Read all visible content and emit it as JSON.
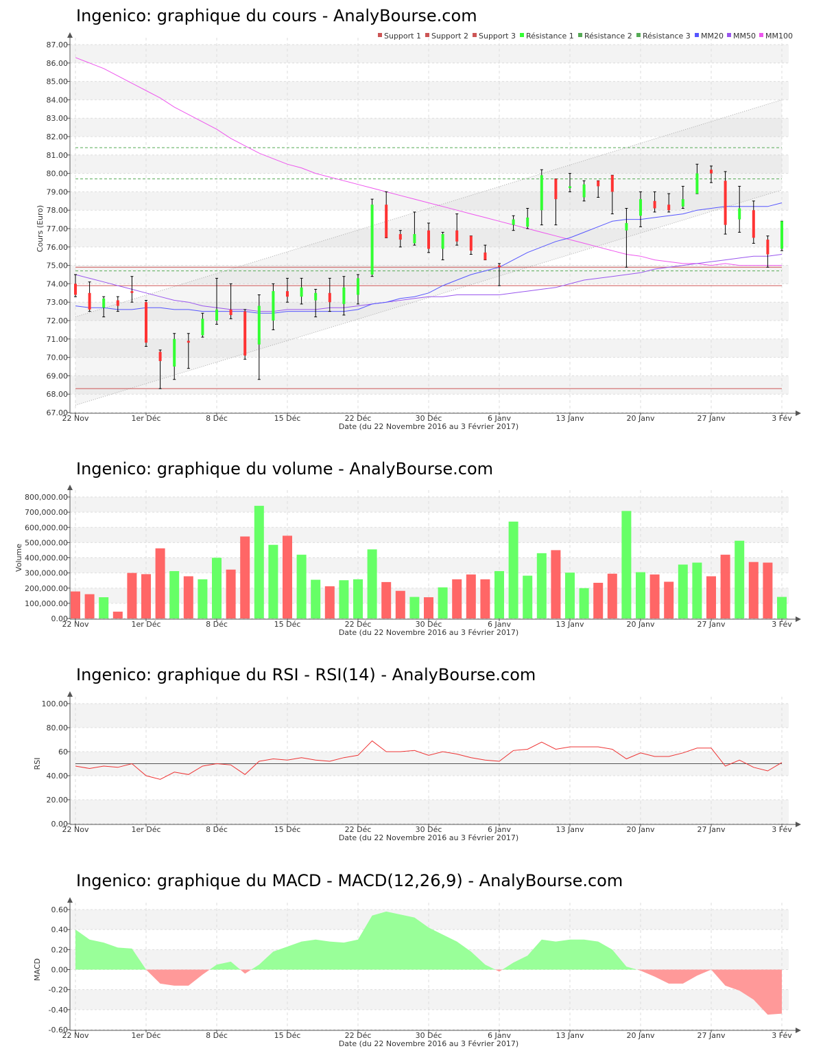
{
  "date_ticks": [
    "22 Nov",
    "1er Déc",
    "8 Déc",
    "15 Déc",
    "22 Déc",
    "30 Déc",
    "6 Janv",
    "13 Janv",
    "20 Janv",
    "27 Janv",
    "3 Fév"
  ],
  "xlabel": "Date (du 22 Novembre 2016 au 3 Février 2017)",
  "colors": {
    "up": "#33ff33",
    "down": "#ff3333",
    "vol_up": "#66ff66",
    "vol_down": "#ff6666",
    "mm20": "#5555ff",
    "mm50": "#9955ee",
    "mm100": "#ee55ee",
    "support": "#cc5555",
    "resistance": "#55aa55",
    "rsi": "#ee3333",
    "macd_pos": "#99ff99",
    "macd_neg": "#ff9999"
  },
  "chart_data": [
    {
      "type": "candlestick",
      "title": "Ingenico: graphique du cours - AnalyBourse.com",
      "ylabel": "Cours (Euro)",
      "xlabel": "Date (du 22 Novembre 2016 au 3 Février 2017)",
      "ylim": [
        67,
        87
      ],
      "yticks": [
        "87.00",
        "86.00",
        "85.00",
        "84.00",
        "83.00",
        "82.00",
        "81.00",
        "80.00",
        "79.00",
        "78.00",
        "77.00",
        "76.00",
        "75.00",
        "74.00",
        "73.00",
        "72.00",
        "71.00",
        "70.00",
        "69.00",
        "68.00",
        "67.00"
      ],
      "legend": [
        "Support 1",
        "Support 2",
        "Support 3",
        "Résistance 1",
        "Résistance 2",
        "Résistance 3",
        "MM20",
        "MM50",
        "MM100"
      ],
      "candles": [
        {
          "o": 74.0,
          "h": 74.5,
          "l": 73.3,
          "c": 73.4
        },
        {
          "o": 73.5,
          "h": 74.1,
          "l": 72.5,
          "c": 72.6
        },
        {
          "o": 72.7,
          "h": 73.3,
          "l": 72.2,
          "c": 73.2
        },
        {
          "o": 73.1,
          "h": 73.3,
          "l": 72.5,
          "c": 72.8
        },
        {
          "o": 73.6,
          "h": 74.4,
          "l": 73.0,
          "c": 73.5
        },
        {
          "o": 73.0,
          "h": 73.1,
          "l": 70.6,
          "c": 70.8
        },
        {
          "o": 70.3,
          "h": 70.4,
          "l": 68.3,
          "c": 69.8
        },
        {
          "o": 69.5,
          "h": 71.3,
          "l": 68.8,
          "c": 71.0
        },
        {
          "o": 70.9,
          "h": 71.3,
          "l": 69.4,
          "c": 70.8
        },
        {
          "o": 71.2,
          "h": 72.4,
          "l": 71.1,
          "c": 72.1
        },
        {
          "o": 72.0,
          "h": 74.3,
          "l": 71.8,
          "c": 72.6
        },
        {
          "o": 72.6,
          "h": 74.0,
          "l": 72.1,
          "c": 72.3
        },
        {
          "o": 72.5,
          "h": 72.6,
          "l": 69.9,
          "c": 70.1
        },
        {
          "o": 70.7,
          "h": 73.4,
          "l": 68.8,
          "c": 72.8
        },
        {
          "o": 72.0,
          "h": 74.0,
          "l": 71.5,
          "c": 73.6
        },
        {
          "o": 73.6,
          "h": 74.3,
          "l": 73.0,
          "c": 73.3
        },
        {
          "o": 73.3,
          "h": 74.3,
          "l": 72.9,
          "c": 73.8
        },
        {
          "o": 73.1,
          "h": 73.7,
          "l": 72.2,
          "c": 73.5
        },
        {
          "o": 73.5,
          "h": 74.3,
          "l": 72.5,
          "c": 73.0
        },
        {
          "o": 72.9,
          "h": 74.4,
          "l": 72.3,
          "c": 73.8
        },
        {
          "o": 73.4,
          "h": 74.5,
          "l": 72.9,
          "c": 74.3
        },
        {
          "o": 74.5,
          "h": 78.6,
          "l": 74.4,
          "c": 78.3
        },
        {
          "o": 78.3,
          "h": 79.0,
          "l": 76.5,
          "c": 76.5
        },
        {
          "o": 76.7,
          "h": 76.9,
          "l": 76.0,
          "c": 76.4
        },
        {
          "o": 76.2,
          "h": 77.9,
          "l": 76.1,
          "c": 76.7
        },
        {
          "o": 76.9,
          "h": 77.3,
          "l": 75.7,
          "c": 75.9
        },
        {
          "o": 75.9,
          "h": 76.8,
          "l": 75.3,
          "c": 76.7
        },
        {
          "o": 76.9,
          "h": 77.8,
          "l": 76.1,
          "c": 76.3
        },
        {
          "o": 76.6,
          "h": 76.6,
          "l": 75.6,
          "c": 75.8
        },
        {
          "o": 75.7,
          "h": 76.1,
          "l": 75.3,
          "c": 75.3
        },
        {
          "o": 75.0,
          "h": 75.1,
          "l": 73.9,
          "c": 74.9
        },
        {
          "o": 77.2,
          "h": 77.7,
          "l": 76.9,
          "c": 77.5
        },
        {
          "o": 77.1,
          "h": 78.1,
          "l": 77.0,
          "c": 77.6
        },
        {
          "o": 78.0,
          "h": 80.2,
          "l": 77.2,
          "c": 79.9
        },
        {
          "o": 79.7,
          "h": 79.7,
          "l": 77.2,
          "c": 78.6
        },
        {
          "o": 79.2,
          "h": 80.0,
          "l": 79.0,
          "c": 79.3
        },
        {
          "o": 78.7,
          "h": 79.6,
          "l": 78.5,
          "c": 79.4
        },
        {
          "o": 79.6,
          "h": 79.6,
          "l": 78.7,
          "c": 79.3
        },
        {
          "o": 79.9,
          "h": 79.9,
          "l": 77.8,
          "c": 79.0
        },
        {
          "o": 76.9,
          "h": 78.1,
          "l": 74.9,
          "c": 77.3
        },
        {
          "o": 77.7,
          "h": 79.0,
          "l": 77.1,
          "c": 78.6
        },
        {
          "o": 78.5,
          "h": 79.0,
          "l": 77.9,
          "c": 78.1
        },
        {
          "o": 78.3,
          "h": 78.9,
          "l": 77.9,
          "c": 78.0
        },
        {
          "o": 78.2,
          "h": 79.3,
          "l": 78.1,
          "c": 78.6
        },
        {
          "o": 78.9,
          "h": 80.5,
          "l": 78.9,
          "c": 80.0
        },
        {
          "o": 80.2,
          "h": 80.4,
          "l": 79.5,
          "c": 80.0
        },
        {
          "o": 79.6,
          "h": 80.1,
          "l": 76.7,
          "c": 77.2
        },
        {
          "o": 77.5,
          "h": 79.3,
          "l": 76.8,
          "c": 78.1
        },
        {
          "o": 78.0,
          "h": 78.5,
          "l": 76.2,
          "c": 76.5
        },
        {
          "o": 76.4,
          "h": 76.6,
          "l": 74.9,
          "c": 75.6
        },
        {
          "o": 75.9,
          "h": 77.4,
          "l": 75.8,
          "c": 77.4
        }
      ],
      "mm20": [
        72.8,
        72.7,
        72.7,
        72.6,
        72.6,
        72.7,
        72.7,
        72.6,
        72.6,
        72.5,
        72.5,
        72.5,
        72.5,
        72.4,
        72.4,
        72.5,
        72.5,
        72.5,
        72.5,
        72.5,
        72.6,
        72.9,
        73.0,
        73.2,
        73.3,
        73.5,
        73.9,
        74.2,
        74.5,
        74.7,
        74.9,
        75.3,
        75.7,
        76.0,
        76.3,
        76.5,
        76.8,
        77.1,
        77.4,
        77.5,
        77.5,
        77.6,
        77.7,
        77.8,
        78.0,
        78.1,
        78.2,
        78.2,
        78.2,
        78.2,
        78.4
      ],
      "mm50": [
        74.5,
        74.3,
        74.1,
        73.9,
        73.7,
        73.5,
        73.3,
        73.1,
        73.0,
        72.8,
        72.7,
        72.6,
        72.6,
        72.5,
        72.5,
        72.6,
        72.6,
        72.6,
        72.7,
        72.7,
        72.8,
        72.9,
        73.0,
        73.1,
        73.2,
        73.3,
        73.3,
        73.4,
        73.4,
        73.4,
        73.4,
        73.5,
        73.6,
        73.7,
        73.8,
        74.0,
        74.2,
        74.3,
        74.4,
        74.5,
        74.6,
        74.8,
        74.9,
        75.0,
        75.1,
        75.2,
        75.3,
        75.4,
        75.5,
        75.5,
        75.6
      ],
      "mm100": [
        86.3,
        86.0,
        85.7,
        85.3,
        84.9,
        84.5,
        84.1,
        83.6,
        83.2,
        82.8,
        82.4,
        81.9,
        81.5,
        81.1,
        80.8,
        80.5,
        80.3,
        80.0,
        79.8,
        79.6,
        79.4,
        79.2,
        79.0,
        78.8,
        78.6,
        78.4,
        78.2,
        78.0,
        77.8,
        77.6,
        77.4,
        77.2,
        77.0,
        76.8,
        76.6,
        76.4,
        76.2,
        76.0,
        75.8,
        75.6,
        75.5,
        75.3,
        75.2,
        75.1,
        75.1,
        75.0,
        75.1,
        75.0,
        75.0,
        75.0,
        75.0
      ],
      "supports": [
        74.9,
        73.9,
        68.3
      ],
      "resistances": [
        81.4,
        79.7,
        74.7
      ],
      "trend_channel": {
        "lower": [
          67.4,
          79.1
        ],
        "upper": [
          72.2,
          84.0
        ]
      }
    },
    {
      "type": "bar",
      "title": "Ingenico: graphique du volume - AnalyBourse.com",
      "ylabel": "Volume",
      "xlabel": "Date (du 22 Novembre 2016 au 3 Février 2017)",
      "ylim": [
        0,
        800000
      ],
      "yticks": [
        "800,000.00",
        "700,000.00",
        "600,000.00",
        "500,000.00",
        "400,000.00",
        "300,000.00",
        "200,000.00",
        "100,000.00",
        "0.00"
      ],
      "values": [
        178000,
        160000,
        140000,
        45000,
        300000,
        292000,
        462000,
        312000,
        278000,
        258000,
        400000,
        322000,
        540000,
        742000,
        485000,
        545000,
        420000,
        255000,
        212000,
        252000,
        258000,
        455000,
        240000,
        182000,
        142000,
        140000,
        205000,
        258000,
        290000,
        258000,
        312000,
        638000,
        282000,
        430000,
        450000,
        302000,
        200000,
        235000,
        295000,
        708000,
        305000,
        290000,
        242000,
        355000,
        368000,
        278000,
        420000,
        512000,
        372000,
        368000,
        142000
      ],
      "up": [
        false,
        false,
        true,
        false,
        false,
        false,
        false,
        true,
        false,
        true,
        true,
        false,
        false,
        true,
        true,
        false,
        true,
        true,
        false,
        true,
        true,
        true,
        false,
        false,
        true,
        false,
        true,
        false,
        false,
        false,
        true,
        true,
        true,
        true,
        false,
        true,
        true,
        false,
        false,
        true,
        true,
        false,
        false,
        true,
        true,
        false,
        false,
        true,
        false,
        false,
        true
      ]
    },
    {
      "type": "line",
      "title": "Ingenico: graphique du RSI - RSI(14) - AnalyBourse.com",
      "ylabel": "RSI",
      "xlabel": "Date (du 22 Novembre 2016 au 3 Février 2017)",
      "ylim": [
        0,
        100
      ],
      "yticks": [
        "100.00",
        "80.00",
        "60",
        "40.00",
        "20.00",
        "0.00"
      ],
      "reference": 50,
      "values": [
        48,
        46,
        48,
        47,
        50,
        40,
        37,
        43,
        41,
        48,
        50,
        49,
        41,
        52,
        54,
        53,
        55,
        53,
        52,
        55,
        57,
        69,
        60,
        60,
        61,
        57,
        60,
        58,
        55,
        53,
        52,
        61,
        62,
        68,
        62,
        64,
        64,
        64,
        62,
        54,
        59,
        56,
        56,
        59,
        63,
        63,
        48,
        53,
        47,
        44,
        51
      ]
    },
    {
      "type": "area",
      "title": "Ingenico: graphique du MACD - MACD(12,26,9) - AnalyBourse.com",
      "ylabel": "MACD",
      "xlabel": "Date (du 22 Novembre 2016 au 3 Février 2017)",
      "ylim": [
        -0.6,
        0.6
      ],
      "yticks": [
        "0.60",
        "0.40",
        "0.20",
        "0.00",
        "-0.20",
        "-0.40",
        "-0.60"
      ],
      "values": [
        0.4,
        0.3,
        0.27,
        0.22,
        0.21,
        0.0,
        -0.14,
        -0.16,
        -0.16,
        -0.05,
        0.05,
        0.08,
        -0.04,
        0.05,
        0.18,
        0.23,
        0.28,
        0.3,
        0.28,
        0.27,
        0.3,
        0.54,
        0.58,
        0.55,
        0.52,
        0.42,
        0.35,
        0.28,
        0.18,
        0.05,
        -0.02,
        0.07,
        0.14,
        0.3,
        0.28,
        0.3,
        0.3,
        0.28,
        0.2,
        0.03,
        -0.01,
        -0.07,
        -0.14,
        -0.14,
        -0.06,
        0.0,
        -0.16,
        -0.21,
        -0.3,
        -0.45,
        -0.44
      ]
    }
  ]
}
